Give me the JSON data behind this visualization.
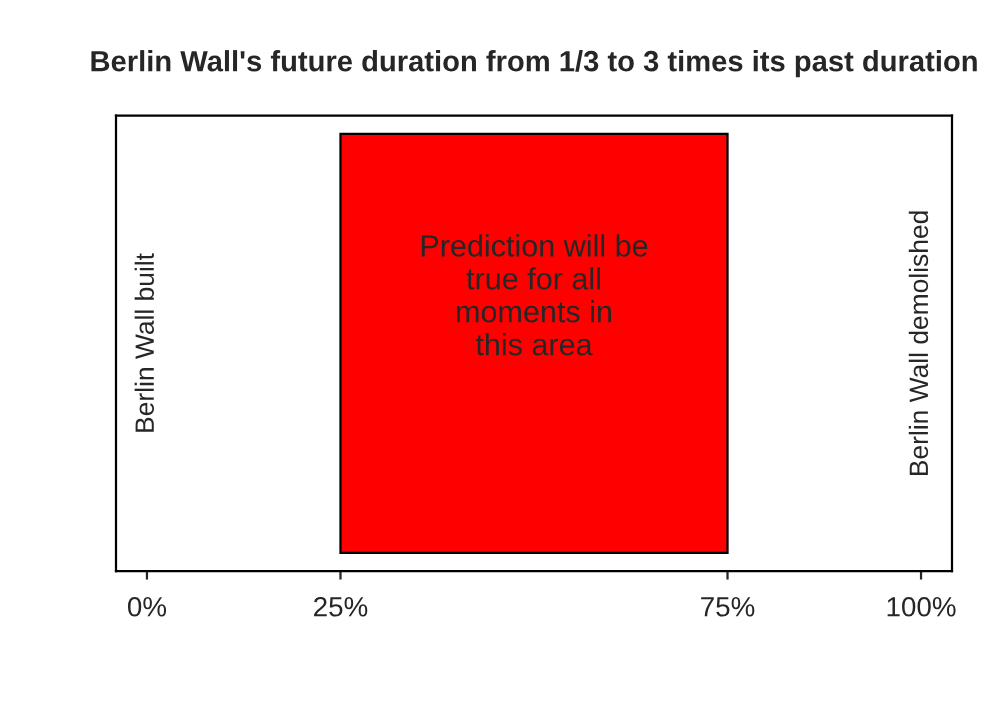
{
  "chart_data": {
    "type": "bar",
    "orientation": "horizontal",
    "title": "Berlin Wall's future duration from 1/3 to 3 times its past duration",
    "categories": [
      null
    ],
    "values": [
      50
    ],
    "base": [
      25
    ],
    "color": "#ff0000",
    "xlim": [
      -4,
      104
    ],
    "xticks": [
      {
        "value": 0,
        "label": "0%"
      },
      {
        "value": 25,
        "label": "25%"
      },
      {
        "value": 75,
        "label": "75%"
      },
      {
        "value": 100,
        "label": "100%"
      }
    ],
    "annotations": [
      "Prediction will be\ntrue for all\nmoments in\nthis area",
      "Berlin Wall built",
      "Berlin Wall demolished"
    ]
  }
}
